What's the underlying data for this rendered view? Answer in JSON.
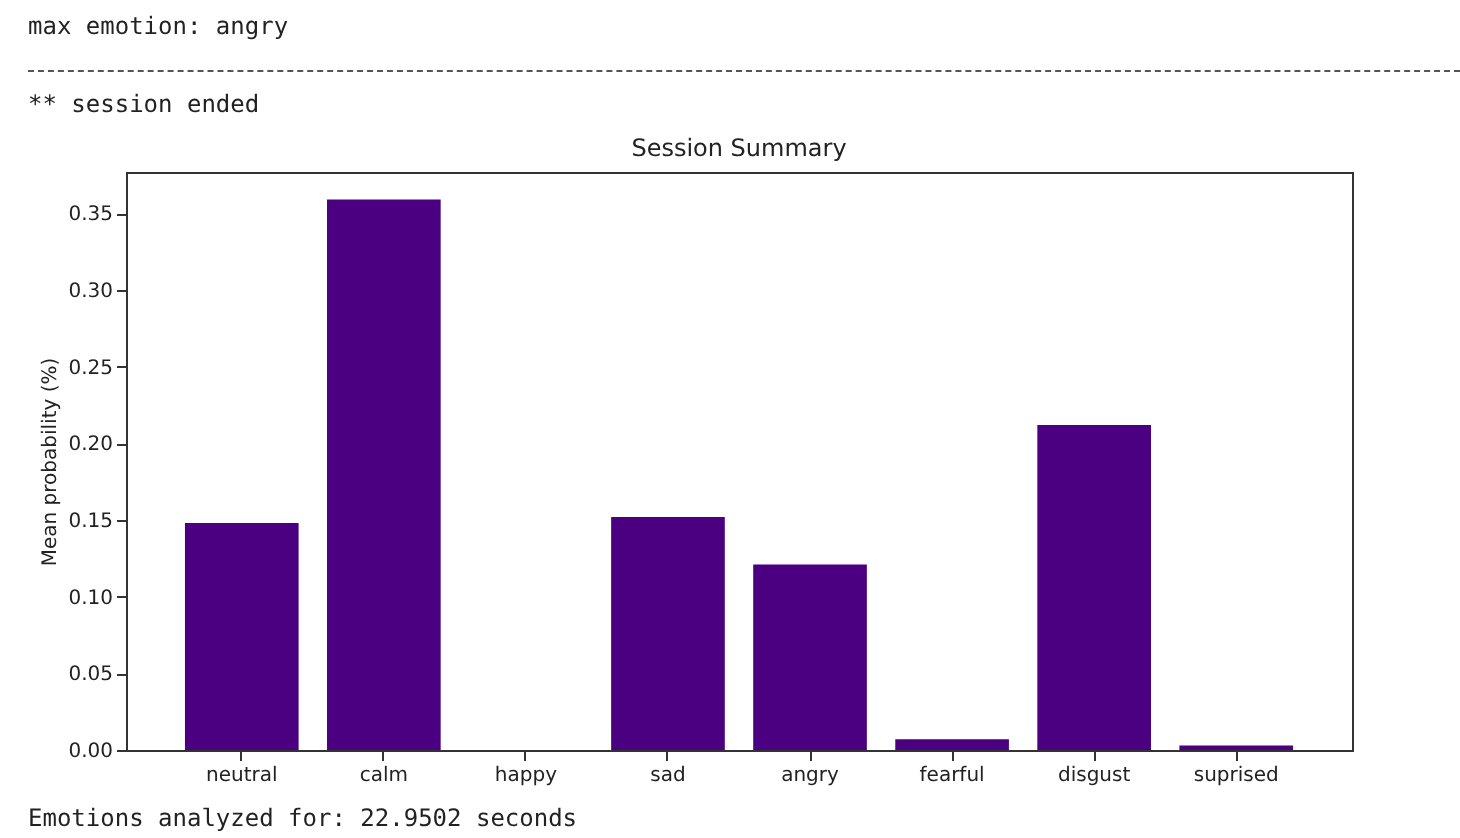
{
  "chart_data": {
    "type": "bar",
    "title": "Session Summary",
    "ylabel": "Mean probability (%)",
    "categories": [
      "neutral",
      "calm",
      "happy",
      "sad",
      "angry",
      "fearful",
      "disgust",
      "suprised"
    ],
    "values": [
      0.148,
      0.359,
      0,
      0.152,
      0.121,
      0.007,
      0.212,
      0.003
    ],
    "color": "#4b0082",
    "ylim": [
      0,
      0.377
    ],
    "yticks": [
      {
        "value": 0,
        "label": "0.00"
      },
      {
        "value": 0.05,
        "label": "0.05"
      },
      {
        "value": 0.1,
        "label": "0.10"
      },
      {
        "value": 0.15,
        "label": "0.15"
      },
      {
        "value": 0.2,
        "label": "0.20"
      },
      {
        "value": 0.25,
        "label": "0.25"
      },
      {
        "value": 0.3,
        "label": "0.30"
      },
      {
        "value": 0.35,
        "label": "0.35"
      }
    ],
    "grid": false,
    "annotations": [
      "max emotion: angry",
      "** session ended",
      "Emotions analyzed for: 22.9502 seconds"
    ]
  }
}
